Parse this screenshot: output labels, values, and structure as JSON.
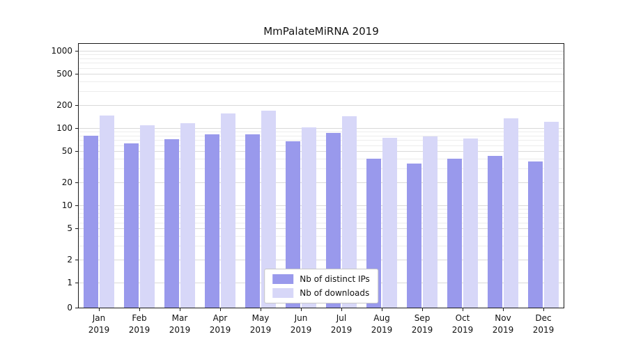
{
  "chart_data": {
    "type": "bar",
    "title": "MmPalateMiRNA 2019",
    "categories": [
      "Jan",
      "Feb",
      "Mar",
      "Apr",
      "May",
      "Jun",
      "Jul",
      "Aug",
      "Sep",
      "Oct",
      "Nov",
      "Dec"
    ],
    "year_label": "2019",
    "series": [
      {
        "name": "Nb of distinct IPs",
        "color": "#9999ec",
        "values": [
          80,
          63,
          72,
          83,
          83,
          68,
          87,
          40,
          35,
          40,
          44,
          37
        ]
      },
      {
        "name": "Nb of downloads",
        "color": "#d7d7f8",
        "values": [
          145,
          108,
          115,
          155,
          168,
          103,
          143,
          75,
          78,
          73,
          133,
          120
        ]
      }
    ],
    "yscale": "symlog",
    "yticks": [
      0,
      1,
      2,
      5,
      10,
      20,
      50,
      100,
      200,
      500,
      1000
    ],
    "minor_yticks": [
      3,
      4,
      6,
      7,
      8,
      9,
      30,
      40,
      60,
      70,
      80,
      90,
      300,
      400,
      600,
      700,
      800,
      900
    ],
    "ylim": [
      0,
      1250
    ],
    "xlabel": "",
    "ylabel": "",
    "grid": true,
    "legend_position": "lower center"
  }
}
